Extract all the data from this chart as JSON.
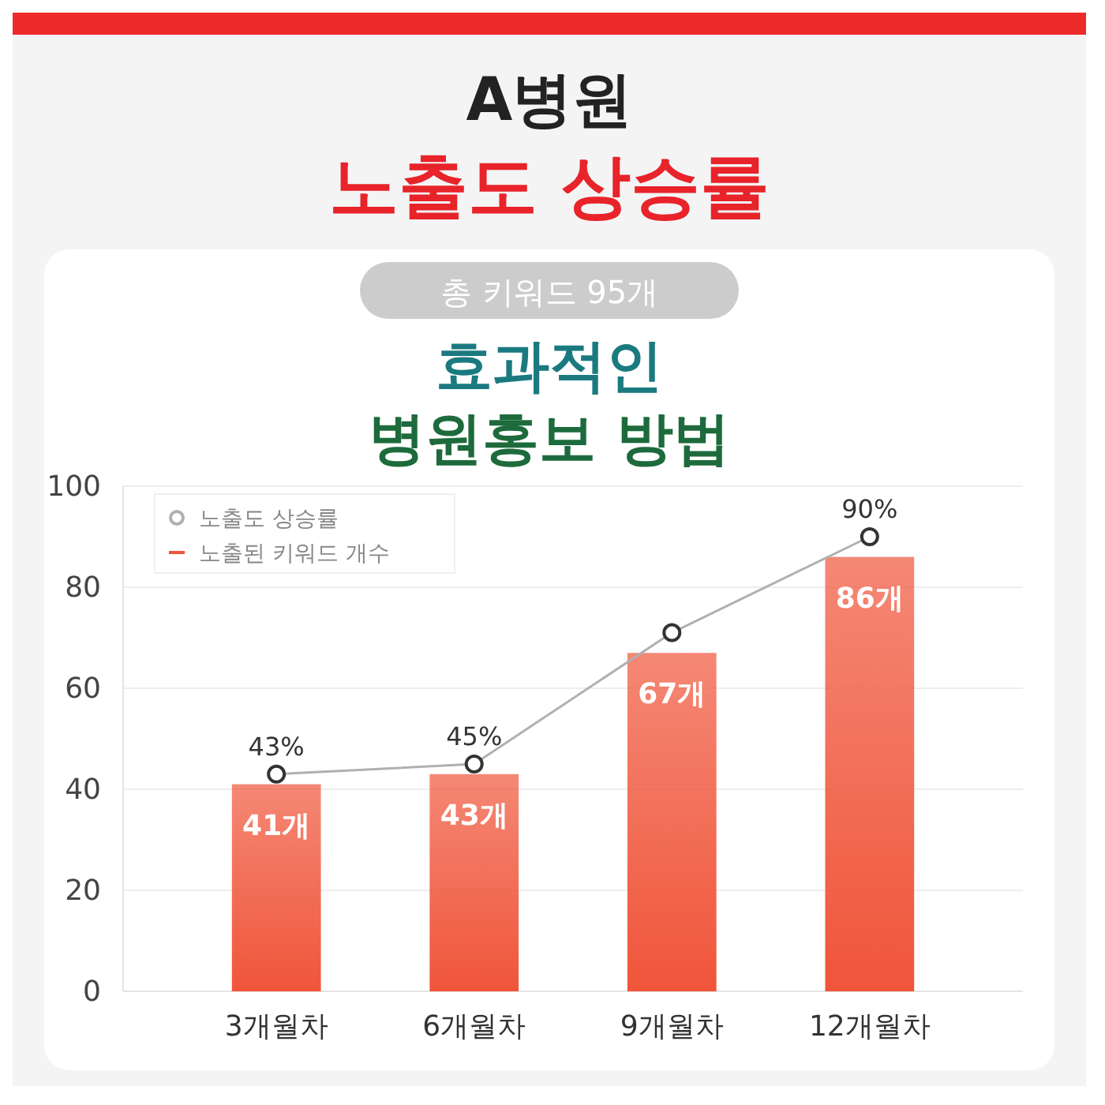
{
  "chart_data": {
    "type": "bar",
    "title": "A병원",
    "subtitle": "노출도 상승률",
    "annotations": [
      "총 키워드 95개",
      "효과적인",
      "병원홍보 방법"
    ],
    "categories": [
      "3개월차",
      "6개월차",
      "9개월차",
      "12개월차"
    ],
    "series": [
      {
        "name": "노출도 상승률",
        "type": "line",
        "color": "#b0b0b0",
        "values": [
          43,
          45,
          71,
          90
        ],
        "value_labels": [
          "43%",
          "45%",
          null,
          "90%"
        ],
        "marker": "circle"
      },
      {
        "name": "노출된 키워드 개수",
        "color": "#f0553a",
        "values": [
          41,
          43,
          67,
          86
        ],
        "value_labels": [
          "41개",
          "43개",
          "67개",
          "86개"
        ]
      }
    ],
    "ylim": [
      0,
      100
    ],
    "yticks": [
      0,
      20,
      40,
      60,
      80,
      100
    ],
    "grid": "y",
    "legend": "top left"
  }
}
